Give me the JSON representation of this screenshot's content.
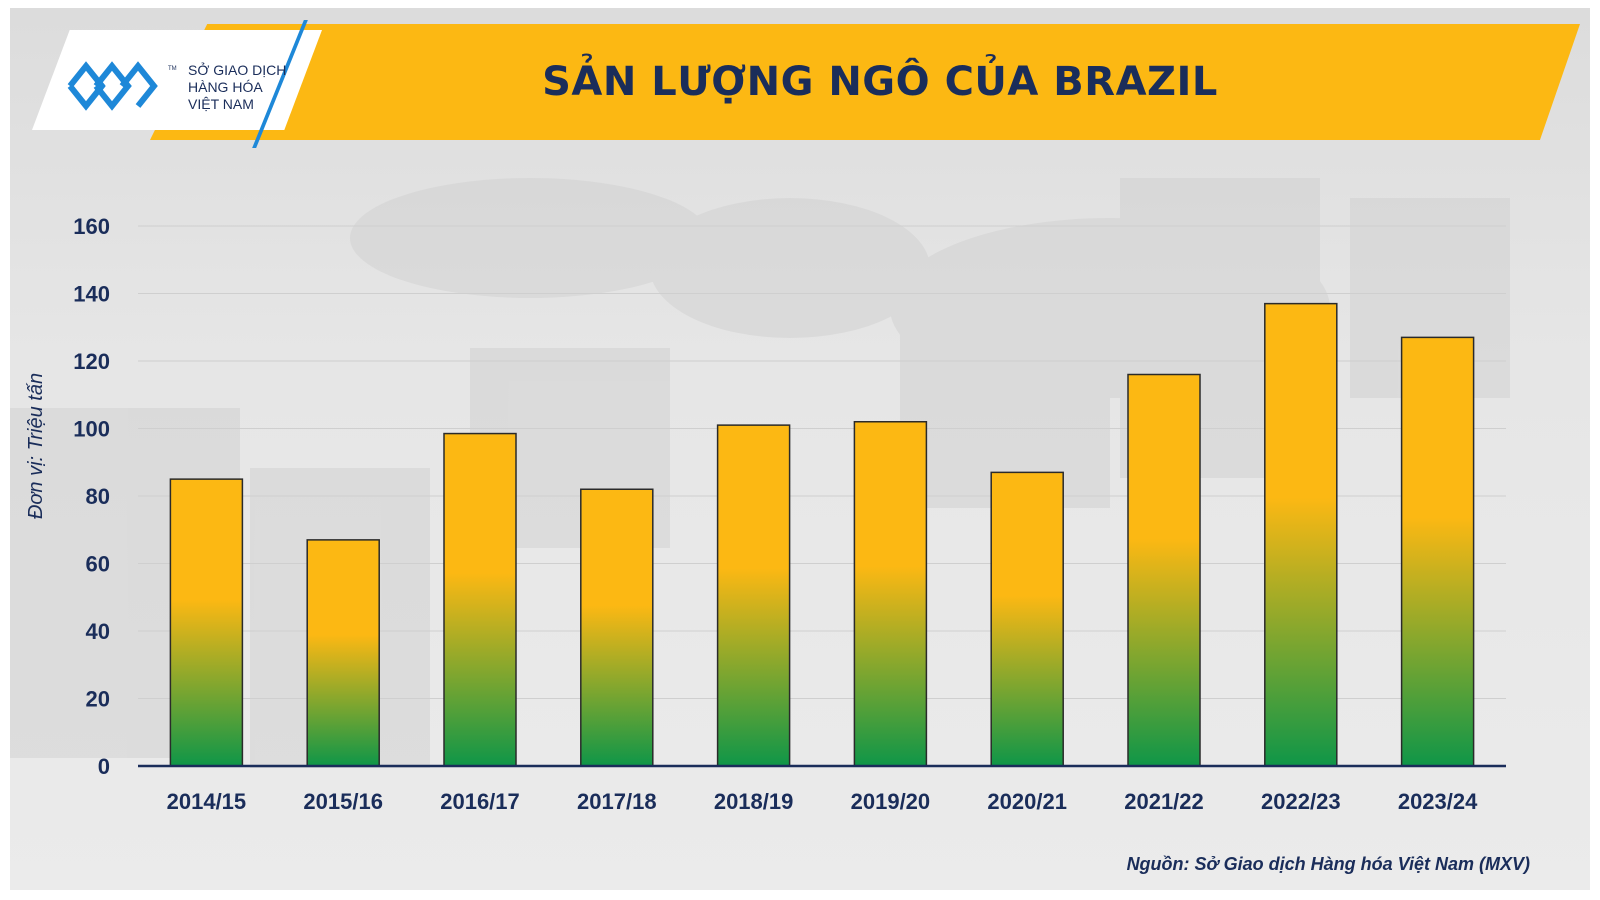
{
  "header": {
    "title": "SẢN LƯỢNG NGÔ CỦA BRAZIL",
    "logo_lines": [
      "SỞ GIAO DỊCH",
      "HÀNG HÓA",
      "VIỆT NAM"
    ],
    "logo_tm": "TM"
  },
  "source_note": "Nguồn: Sở Giao dịch Hàng hóa Việt Nam (MXV)",
  "colors": {
    "banner": "#fcb813",
    "title_text": "#1a2d5a",
    "bar_top": "#fcb813",
    "bar_bottom": "#0f9648",
    "axis_text": "#1a2d5a",
    "logo_blue": "#1e88d8"
  },
  "chart_data": {
    "type": "bar",
    "title": "SẢN LƯỢNG NGÔ CỦA BRAZIL",
    "xlabel": "",
    "ylabel": "Đơn vị: Triệu tấn",
    "categories": [
      "2014/15",
      "2015/16",
      "2016/17",
      "2017/18",
      "2018/19",
      "2019/20",
      "2020/21",
      "2021/22",
      "2022/23",
      "2023/24"
    ],
    "values": [
      85,
      67,
      98.5,
      82,
      101,
      102,
      87,
      116,
      137,
      127
    ],
    "ylim": [
      0,
      160
    ],
    "yticks": [
      0,
      20,
      40,
      60,
      80,
      100,
      120,
      140,
      160
    ],
    "grid": true,
    "legend": "none"
  }
}
